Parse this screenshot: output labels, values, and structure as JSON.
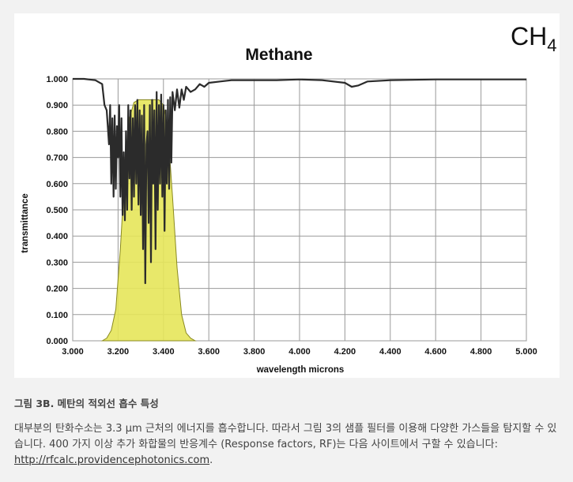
{
  "figure": {
    "formula_main": "CH",
    "formula_sub": "4"
  },
  "caption": "그림 3B. 메탄의 적외선 흡수 특성",
  "body": {
    "text": "대부분의 탄화수소는 3.3 μm 근처의 에너지를 흡수합니다. 따라서 그림 3의 샘플 필터를 이용해 다양한 가스들을 탐지할 수 있습니다. 400 가지 이상 추가 화합물의 반응계수 (Response factors, RF)는 다음 사이트에서 구할 수 있습니다: ",
    "link_text": "http://rfcalc.providencephotonics.com",
    "end": "."
  },
  "chart_data": {
    "type": "line",
    "title": "Methane",
    "xlabel": "wavelength microns",
    "ylabel": "transmittance",
    "xlim": [
      3.0,
      5.0
    ],
    "ylim": [
      0.0,
      1.0
    ],
    "grid": true,
    "x_ticks": [
      "3.000",
      "3.200",
      "3.400",
      "3.600",
      "3.800",
      "4.000",
      "4.200",
      "4.400",
      "4.600",
      "4.800",
      "5.000"
    ],
    "y_ticks": [
      "0.000",
      "0.100",
      "0.200",
      "0.300",
      "0.400",
      "0.500",
      "0.600",
      "0.700",
      "0.800",
      "0.900",
      "1.000"
    ],
    "series": [
      {
        "color": "#2b2b2b",
        "x": [
          3.0,
          3.05,
          3.1,
          3.13,
          3.14,
          3.15,
          3.16,
          3.165,
          3.17,
          3.175,
          3.18,
          3.185,
          3.19,
          3.195,
          3.2,
          3.205,
          3.21,
          3.215,
          3.22,
          3.225,
          3.23,
          3.235,
          3.24,
          3.245,
          3.25,
          3.255,
          3.26,
          3.265,
          3.27,
          3.275,
          3.28,
          3.285,
          3.29,
          3.295,
          3.3,
          3.305,
          3.31,
          3.315,
          3.32,
          3.325,
          3.33,
          3.335,
          3.34,
          3.345,
          3.35,
          3.355,
          3.36,
          3.365,
          3.37,
          3.375,
          3.38,
          3.385,
          3.39,
          3.395,
          3.4,
          3.405,
          3.41,
          3.415,
          3.42,
          3.425,
          3.43,
          3.435,
          3.44,
          3.45,
          3.46,
          3.47,
          3.48,
          3.49,
          3.5,
          3.52,
          3.54,
          3.56,
          3.58,
          3.6,
          3.65,
          3.7,
          3.8,
          3.9,
          4.0,
          4.1,
          4.2,
          4.23,
          4.26,
          4.3,
          4.4,
          4.6,
          4.8,
          5.0
        ],
        "y": [
          1.0,
          1.0,
          0.995,
          0.98,
          0.9,
          0.88,
          0.75,
          0.9,
          0.6,
          0.85,
          0.55,
          0.86,
          0.58,
          0.82,
          0.7,
          0.9,
          0.55,
          0.85,
          0.48,
          0.72,
          0.46,
          0.8,
          0.5,
          0.9,
          0.62,
          0.88,
          0.5,
          0.85,
          0.55,
          0.9,
          0.6,
          0.92,
          0.52,
          0.88,
          0.48,
          0.86,
          0.35,
          0.9,
          0.22,
          0.75,
          0.8,
          0.45,
          0.9,
          0.3,
          0.92,
          0.6,
          0.88,
          0.35,
          0.95,
          0.5,
          0.9,
          0.6,
          0.94,
          0.55,
          0.9,
          0.42,
          0.88,
          0.6,
          0.92,
          0.58,
          0.93,
          0.68,
          0.95,
          0.88,
          0.96,
          0.89,
          0.96,
          0.92,
          0.97,
          0.95,
          0.96,
          0.98,
          0.97,
          0.985,
          0.99,
          0.995,
          0.995,
          0.995,
          0.998,
          0.995,
          0.985,
          0.97,
          0.975,
          0.99,
          0.995,
          0.998,
          0.998,
          0.998
        ]
      },
      {
        "color": "#e6e55a",
        "x": [
          3.13,
          3.15,
          3.17,
          3.19,
          3.21,
          3.23,
          3.25,
          3.27,
          3.29,
          3.3,
          3.32,
          3.34,
          3.36,
          3.38,
          3.4,
          3.42,
          3.44,
          3.46,
          3.48,
          3.5,
          3.52,
          3.54
        ],
        "y": [
          0.0,
          0.01,
          0.04,
          0.12,
          0.35,
          0.65,
          0.85,
          0.91,
          0.92,
          0.92,
          0.92,
          0.92,
          0.92,
          0.92,
          0.9,
          0.8,
          0.55,
          0.28,
          0.1,
          0.03,
          0.01,
          0.0
        ]
      }
    ]
  }
}
